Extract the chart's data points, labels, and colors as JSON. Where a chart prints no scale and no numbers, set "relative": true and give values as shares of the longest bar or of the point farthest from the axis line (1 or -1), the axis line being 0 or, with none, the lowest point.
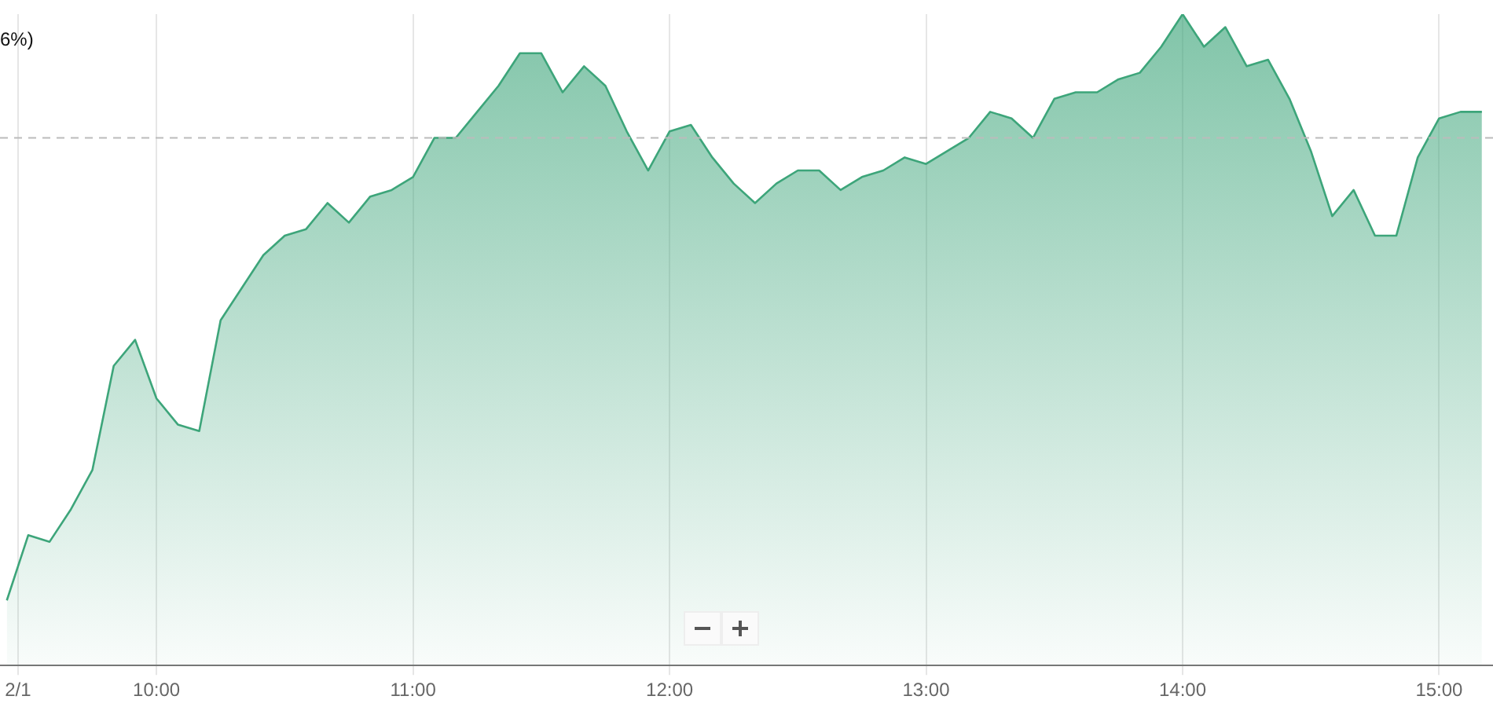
{
  "chart_data": {
    "type": "area",
    "relative": true,
    "x": [
      9.4167,
      9.5,
      9.5833,
      9.6667,
      9.75,
      9.8333,
      9.9167,
      10,
      10.0833,
      10.1667,
      10.25,
      10.3333,
      10.4167,
      10.5,
      10.5833,
      10.6667,
      10.75,
      10.8333,
      10.9167,
      11,
      11.0833,
      11.1667,
      11.25,
      11.3333,
      11.4167,
      11.5,
      11.5833,
      11.6667,
      11.75,
      11.8333,
      11.9167,
      12,
      12.0833,
      12.1667,
      12.25,
      12.3333,
      12.4167,
      12.5,
      12.5833,
      12.6667,
      12.75,
      12.8333,
      12.9167,
      13,
      13.0833,
      13.1667,
      13.25,
      13.3333,
      13.4167,
      13.5,
      13.5833,
      13.6667,
      13.75,
      13.8333,
      13.9167,
      14,
      14.0833,
      14.1667,
      14.25,
      14.3333,
      14.4167,
      14.5,
      14.5833,
      14.6667,
      14.75,
      14.8333,
      14.9167,
      15,
      15.0833,
      15.1667
    ],
    "series": [
      {
        "color": "#3da57a",
        "values": [
          0.1,
          0.2,
          0.19,
          0.24,
          0.3,
          0.46,
          0.5,
          0.41,
          0.37,
          0.36,
          0.53,
          0.58,
          0.63,
          0.66,
          0.67,
          0.71,
          0.68,
          0.72,
          0.73,
          0.75,
          0.81,
          0.81,
          0.85,
          0.89,
          0.94,
          0.94,
          0.88,
          0.92,
          0.89,
          0.82,
          0.76,
          0.82,
          0.83,
          0.78,
          0.74,
          0.71,
          0.74,
          0.76,
          0.76,
          0.73,
          0.75,
          0.76,
          0.78,
          0.77,
          0.79,
          0.81,
          0.85,
          0.84,
          0.81,
          0.87,
          0.88,
          0.88,
          0.9,
          0.91,
          0.95,
          1,
          0.95,
          0.98,
          0.92,
          0.93,
          0.87,
          0.79,
          0.69,
          0.73,
          0.66,
          0.66,
          0.78,
          0.84,
          0.85,
          0.85
        ]
      }
    ],
    "xlim": [
      9.39,
      15.21
    ],
    "xticks": [
      {
        "value": 9.46,
        "label": "2/1"
      },
      {
        "value": 10,
        "label": "10:00"
      },
      {
        "value": 11,
        "label": "11:00"
      },
      {
        "value": 12,
        "label": "12:00"
      },
      {
        "value": 13,
        "label": "13:00"
      },
      {
        "value": 14,
        "label": "14:00"
      },
      {
        "value": 15,
        "label": "15:00"
      }
    ],
    "ref_lines": [
      {
        "axis": "y",
        "value": 0.81,
        "color": "#bbbbbb",
        "line_style": "dashed"
      }
    ],
    "annotations": [
      "6%)"
    ],
    "grid": "x",
    "marker": "none"
  }
}
